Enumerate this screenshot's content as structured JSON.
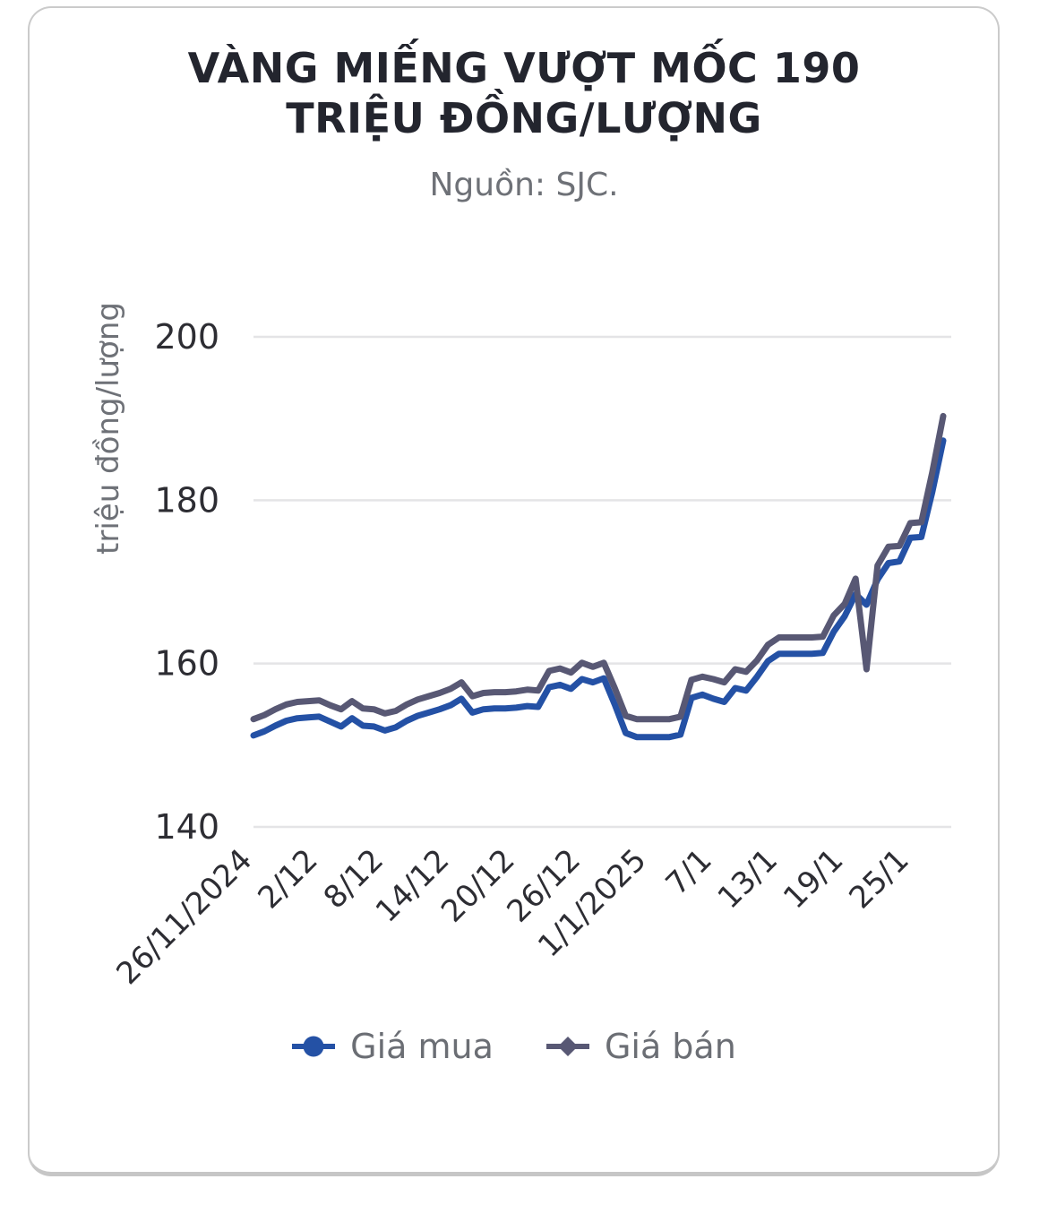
{
  "header": {
    "title_line1": "VÀNG MIẾNG VƯỢT MỐC 190",
    "title_line2": "TRIỆU ĐỒNG/LƯỢNG",
    "source": "Nguồn: SJC."
  },
  "chart_data": {
    "type": "line",
    "title": "VÀNG MIẾNG VƯỢT MỐC 190 TRIỆU ĐỒNG/LƯỢNG",
    "subtitle": "Nguồn: SJC.",
    "ylabel": "triệu đồng/lượng",
    "xlabel": "",
    "ylim": [
      140,
      200
    ],
    "yticks": [
      140,
      160,
      180,
      200
    ],
    "grid": "horizontal",
    "legend_position": "bottom",
    "x": [
      "26/11",
      "27/11",
      "28/11",
      "29/11",
      "30/11",
      "1/12",
      "2/12",
      "3/12",
      "4/12",
      "5/12",
      "6/12",
      "7/12",
      "8/12",
      "9/12",
      "10/12",
      "11/12",
      "12/12",
      "13/12",
      "14/12",
      "15/12",
      "16/12",
      "17/12",
      "18/12",
      "19/12",
      "20/12",
      "21/12",
      "22/12",
      "23/12",
      "24/12",
      "25/12",
      "26/12",
      "27/12",
      "28/12",
      "29/12",
      "30/12",
      "31/12",
      "1/1",
      "2/1",
      "3/1",
      "4/1",
      "5/1",
      "6/1",
      "7/1",
      "8/1",
      "9/1",
      "10/1",
      "11/1",
      "12/1",
      "13/1",
      "14/1",
      "15/1",
      "16/1",
      "17/1",
      "18/1",
      "19/1",
      "20/1",
      "21/1",
      "22/1",
      "23/1",
      "24/1",
      "25/1",
      "26/1",
      "27/1",
      "28/1"
    ],
    "xtick_labels": [
      "26/11/2024",
      "2/12",
      "8/12",
      "14/12",
      "20/12",
      "26/12",
      "1/1/2025",
      "7/1",
      "13/1",
      "19/1",
      "25/1"
    ],
    "xtick_indices": [
      0,
      6,
      12,
      18,
      24,
      30,
      36,
      42,
      48,
      54,
      60
    ],
    "series": [
      {
        "name": "Giá mua",
        "color": "#2451a5",
        "marker": "circle",
        "values": [
          151.2,
          151.7,
          152.4,
          153.0,
          153.3,
          153.4,
          153.5,
          152.9,
          152.3,
          153.3,
          152.4,
          152.3,
          151.8,
          152.2,
          153.0,
          153.6,
          154.0,
          154.4,
          154.9,
          155.7,
          154.0,
          154.4,
          154.5,
          154.5,
          154.6,
          154.8,
          154.7,
          157.1,
          157.4,
          156.9,
          158.1,
          157.7,
          158.2,
          155.0,
          151.5,
          151.0,
          151.0,
          151.0,
          151.0,
          151.3,
          155.8,
          156.2,
          155.7,
          155.3,
          157.0,
          156.7,
          158.4,
          160.3,
          161.2,
          161.2,
          161.2,
          161.2,
          161.3,
          163.9,
          165.8,
          168.5,
          167.2,
          170.3,
          172.3,
          172.5,
          175.4,
          175.5,
          181.0,
          187.3
        ]
      },
      {
        "name": "Giá bán",
        "color": "#585874",
        "marker": "diamond",
        "values": [
          153.2,
          153.7,
          154.4,
          155.0,
          155.3,
          155.4,
          155.5,
          154.9,
          154.4,
          155.4,
          154.5,
          154.4,
          153.9,
          154.2,
          155.0,
          155.6,
          156.0,
          156.4,
          156.9,
          157.7,
          156.0,
          156.4,
          156.5,
          156.5,
          156.6,
          156.8,
          156.7,
          159.1,
          159.4,
          158.9,
          160.1,
          159.6,
          160.1,
          157.0,
          153.6,
          153.2,
          153.2,
          153.2,
          153.2,
          153.5,
          158.0,
          158.4,
          158.1,
          157.7,
          159.3,
          159.0,
          160.4,
          162.3,
          163.2,
          163.2,
          163.2,
          163.2,
          163.3,
          165.9,
          167.3,
          170.4,
          159.3,
          172.0,
          174.3,
          174.4,
          177.2,
          177.3,
          183.4,
          190.3
        ]
      }
    ]
  },
  "legend": {
    "items": [
      {
        "label": "Giá mua"
      },
      {
        "label": "Giá bán"
      }
    ]
  }
}
